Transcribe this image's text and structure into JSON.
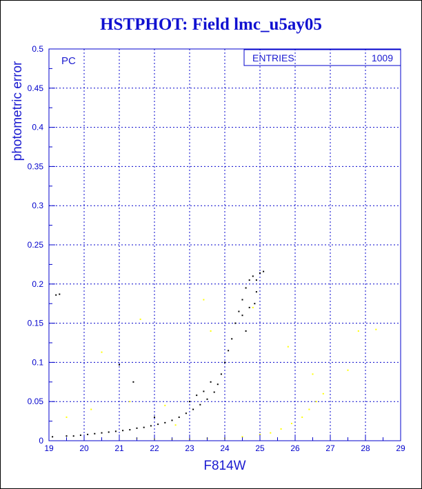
{
  "chart_data": {
    "type": "scatter",
    "title": "HSTPHOT: Field lmc_u5ay05",
    "xlabel": "F814W",
    "ylabel": "photometric error",
    "xlim": [
      19,
      29
    ],
    "ylim": [
      0,
      0.5
    ],
    "x_ticks": [
      "19",
      "20",
      "21",
      "22",
      "23",
      "24",
      "25",
      "26",
      "27",
      "28",
      "29"
    ],
    "y_ticks": [
      "0",
      "0.05",
      "0.1",
      "0.15",
      "0.2",
      "0.25",
      "0.3",
      "0.35",
      "0.4",
      "0.45",
      "0.5"
    ],
    "grid": true,
    "annotation": "PC",
    "stats_box": {
      "label": "ENTRIES",
      "value": "1009"
    },
    "colors": {
      "axis": "#0000cc",
      "grid": "#0000cc",
      "text": "#1a1ad0",
      "series_black": "#000000",
      "series_yellow": "#ffff00"
    },
    "series": [
      {
        "color": "#000000",
        "points": [
          [
            19.1,
            0.005
          ],
          [
            19.2,
            0.186
          ],
          [
            19.3,
            0.187
          ],
          [
            19.5,
            0.006
          ],
          [
            19.7,
            0.006
          ],
          [
            19.9,
            0.007
          ],
          [
            20.1,
            0.008
          ],
          [
            20.3,
            0.009
          ],
          [
            20.5,
            0.01
          ],
          [
            20.7,
            0.011
          ],
          [
            20.9,
            0.012
          ],
          [
            21.0,
            0.097
          ],
          [
            21.1,
            0.013
          ],
          [
            21.3,
            0.014
          ],
          [
            21.4,
            0.075
          ],
          [
            21.5,
            0.016
          ],
          [
            21.7,
            0.017
          ],
          [
            21.9,
            0.019
          ],
          [
            22.0,
            0.03
          ],
          [
            22.1,
            0.021
          ],
          [
            22.3,
            0.023
          ],
          [
            22.5,
            0.026
          ],
          [
            22.7,
            0.03
          ],
          [
            22.9,
            0.035
          ],
          [
            23.0,
            0.05
          ],
          [
            23.1,
            0.04
          ],
          [
            23.2,
            0.058
          ],
          [
            23.3,
            0.046
          ],
          [
            23.4,
            0.063
          ],
          [
            23.5,
            0.053
          ],
          [
            23.6,
            0.075
          ],
          [
            23.7,
            0.062
          ],
          [
            23.8,
            0.072
          ],
          [
            23.9,
            0.085
          ],
          [
            24.0,
            0.1
          ],
          [
            24.1,
            0.115
          ],
          [
            24.2,
            0.13
          ],
          [
            24.3,
            0.15
          ],
          [
            24.4,
            0.165
          ],
          [
            24.5,
            0.18
          ],
          [
            24.6,
            0.195
          ],
          [
            24.7,
            0.205
          ],
          [
            24.8,
            0.21
          ],
          [
            24.9,
            0.205
          ],
          [
            25.0,
            0.214
          ],
          [
            25.1,
            0.216
          ],
          [
            24.85,
            0.175
          ],
          [
            24.6,
            0.14
          ],
          [
            24.9,
            0.19
          ],
          [
            24.5,
            0.16
          ],
          [
            24.7,
            0.17
          ]
        ]
      },
      {
        "color": "#ffff00",
        "points": [
          [
            19.5,
            0.03
          ],
          [
            20.2,
            0.04
          ],
          [
            20.5,
            0.113
          ],
          [
            21.3,
            0.05
          ],
          [
            21.6,
            0.155
          ],
          [
            22.3,
            0.045
          ],
          [
            22.6,
            0.02
          ],
          [
            23.4,
            0.18
          ],
          [
            23.6,
            0.14
          ],
          [
            21.5,
            0.003
          ],
          [
            22.0,
            0.002
          ],
          [
            22.5,
            0.002
          ],
          [
            23.0,
            0.002
          ],
          [
            23.5,
            0.003
          ],
          [
            24.0,
            0.003
          ],
          [
            24.5,
            0.005
          ],
          [
            25.0,
            0.008
          ],
          [
            25.3,
            0.01
          ],
          [
            25.6,
            0.015
          ],
          [
            25.9,
            0.022
          ],
          [
            26.2,
            0.03
          ],
          [
            26.4,
            0.04
          ],
          [
            26.6,
            0.05
          ],
          [
            26.8,
            0.06
          ],
          [
            27.5,
            0.09
          ],
          [
            27.8,
            0.14
          ],
          [
            28.3,
            0.142
          ],
          [
            25.8,
            0.12
          ],
          [
            26.5,
            0.085
          ],
          [
            24.8,
            0.17
          ]
        ]
      }
    ]
  }
}
